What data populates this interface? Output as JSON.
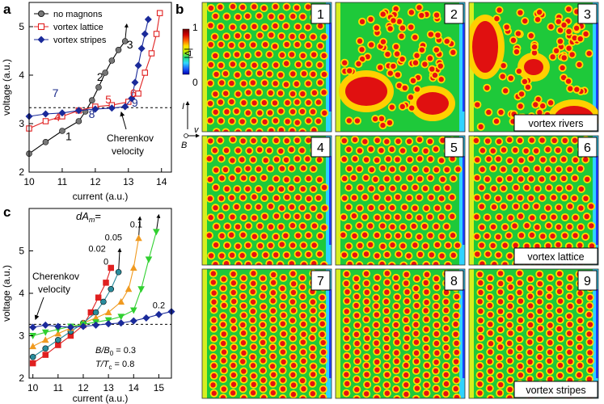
{
  "panel_letters": {
    "a": "a",
    "b": "b",
    "c": "c"
  },
  "colorbar": {
    "title": "|Δ|",
    "max_label": "1",
    "min_label": "0",
    "colors": [
      "#0000b0",
      "#1a60ff",
      "#30d8ff",
      "#20e080",
      "#c0f000",
      "#ffe000",
      "#ff6000",
      "#d00000",
      "#700000"
    ]
  },
  "axes_legend": {
    "I": "I",
    "v": "v",
    "B": "B"
  },
  "tiles": [
    {
      "number": "1",
      "pattern": "lattice",
      "caption": ""
    },
    {
      "number": "2",
      "pattern": "rivers",
      "caption": ""
    },
    {
      "number": "3",
      "pattern": "rivers",
      "caption": "vortex rivers"
    },
    {
      "number": "4",
      "pattern": "lattice",
      "caption": ""
    },
    {
      "number": "5",
      "pattern": "lattice",
      "caption": ""
    },
    {
      "number": "6",
      "pattern": "lattice",
      "caption": "vortex lattice"
    },
    {
      "number": "7",
      "pattern": "stripes",
      "caption": ""
    },
    {
      "number": "8",
      "pattern": "stripes",
      "caption": ""
    },
    {
      "number": "9",
      "pattern": "stripes",
      "caption": "vortex stripes"
    }
  ],
  "panel_a_annotations": {
    "point_labels": [
      {
        "text": "1",
        "x": 11.1,
        "y": 2.66,
        "color": "#000000"
      },
      {
        "text": "2",
        "x": 12.05,
        "y": 3.88,
        "color": "#000000"
      },
      {
        "text": "3",
        "x": 12.95,
        "y": 4.55,
        "color": "#000000"
      },
      {
        "text": "4",
        "x": 10.75,
        "y": 3.05,
        "color": "#e02020"
      },
      {
        "text": "5",
        "x": 12.3,
        "y": 3.42,
        "color": "#e02020"
      },
      {
        "text": "6",
        "x": 13.05,
        "y": 3.55,
        "color": "#e02020"
      },
      {
        "text": "7",
        "x": 10.7,
        "y": 3.55,
        "color": "#1a2a8a"
      },
      {
        "text": "8",
        "x": 11.8,
        "y": 3.12,
        "color": "#1a2a8a"
      },
      {
        "text": "9",
        "x": 13.1,
        "y": 3.35,
        "color": "#1a2a8a"
      }
    ],
    "cherenkov_line1": "Cherenkov",
    "cherenkov_line2": "velocity"
  },
  "panel_c_annotations": {
    "dam_title_main": "dA",
    "dam_title_sub": "m",
    "dam_title_eq": "=",
    "curve_labels": [
      {
        "text": "0",
        "x": 12.9,
        "y": 4.68
      },
      {
        "text": "0.02",
        "x": 12.55,
        "y": 4.98
      },
      {
        "text": "0.05",
        "x": 13.2,
        "y": 5.25
      },
      {
        "text": "0.1",
        "x": 14.1,
        "y": 5.55
      },
      {
        "text": "0.2",
        "x": 15.0,
        "y": 3.65
      }
    ],
    "cherenkov_line1": "Cherenkov",
    "cherenkov_line2": "velocity",
    "param_b": "B/B",
    "param_b_sub": "0",
    "param_b_val": " = 0.3",
    "param_t": "T/T",
    "param_t_sub": "c",
    "param_t_val": " = 0.8"
  },
  "chart_data": [
    {
      "type": "line",
      "panel": "a",
      "xlabel": "current (a.u.)",
      "ylabel": "voltage (a.u.)",
      "xlim": [
        10,
        14.3
      ],
      "ylim": [
        2,
        5.5
      ],
      "xticks": [
        10,
        11,
        12,
        13,
        14
      ],
      "yticks": [
        2,
        3,
        4,
        5
      ],
      "threshold": 3.33,
      "legend_position": "top-left",
      "series": [
        {
          "name": "no magnons",
          "color": "#000000",
          "marker": "circle",
          "x": [
            10,
            10.5,
            11,
            11.5,
            11.7,
            11.9,
            12.1,
            12.3,
            12.5,
            12.7,
            12.9
          ],
          "y": [
            2.38,
            2.62,
            2.85,
            3.05,
            3.25,
            3.48,
            3.75,
            4.05,
            4.3,
            4.52,
            4.7
          ],
          "arrow_end": [
            12.95,
            5.05
          ]
        },
        {
          "name": "vortex lattice",
          "color": "#e02020",
          "marker": "square",
          "x": [
            10,
            10.5,
            11,
            11.5,
            12,
            12.5,
            13,
            13.3,
            13.5,
            13.7,
            13.85,
            13.95
          ],
          "y": [
            2.9,
            3.05,
            3.15,
            3.27,
            3.35,
            3.38,
            3.45,
            3.62,
            4.05,
            4.45,
            4.85,
            5.28
          ]
        },
        {
          "name": "vortex stripes",
          "color": "#1a2a9a",
          "marker": "diamond",
          "x": [
            10,
            10.5,
            11,
            11.5,
            12,
            12.5,
            12.9,
            13.1,
            13.2,
            13.3,
            13.4,
            13.5,
            13.6
          ],
          "y": [
            3.15,
            3.2,
            3.22,
            3.27,
            3.3,
            3.32,
            3.35,
            3.52,
            3.85,
            4.2,
            4.55,
            4.85,
            5.15
          ]
        }
      ]
    },
    {
      "type": "line",
      "panel": "c",
      "xlabel": "current (a.u.)",
      "ylabel": "voltage (a.u.)",
      "xlim": [
        9.85,
        15.5
      ],
      "ylim": [
        2,
        6
      ],
      "xticks": [
        10,
        11,
        12,
        13,
        14,
        15
      ],
      "yticks": [
        2,
        3,
        4,
        5
      ],
      "threshold": 3.27,
      "series": [
        {
          "name": "0",
          "color": "#e02020",
          "marker": "square",
          "x": [
            10,
            10.5,
            11,
            11.5,
            12,
            12.3,
            12.6,
            12.9,
            13.1
          ],
          "y": [
            2.35,
            2.55,
            2.78,
            3.0,
            3.25,
            3.55,
            3.9,
            4.25,
            4.6
          ]
        },
        {
          "name": "0.02",
          "color": "#2a8c9c",
          "marker": "circle",
          "x": [
            10,
            10.5,
            11,
            11.5,
            12,
            12.5,
            12.8,
            13.1,
            13.4
          ],
          "y": [
            2.5,
            2.7,
            2.9,
            3.1,
            3.3,
            3.55,
            3.8,
            4.1,
            4.5
          ],
          "arrow_end": [
            13.45,
            5.05
          ]
        },
        {
          "name": "0.05",
          "color": "#f09a20",
          "marker": "triangle-up",
          "x": [
            10,
            10.5,
            11,
            11.5,
            12,
            12.5,
            13,
            13.5,
            13.8,
            14.0,
            14.2
          ],
          "y": [
            2.75,
            2.9,
            3.05,
            3.18,
            3.3,
            3.42,
            3.55,
            3.8,
            4.1,
            4.6,
            5.3
          ],
          "arrow_end": [
            14.25,
            5.8
          ]
        },
        {
          "name": "0.1",
          "color": "#30d030",
          "marker": "triangle-down",
          "x": [
            10,
            10.5,
            11,
            11.5,
            12,
            12.5,
            13,
            13.5,
            14,
            14.3,
            14.6,
            14.9
          ],
          "y": [
            3.0,
            3.08,
            3.15,
            3.22,
            3.27,
            3.32,
            3.37,
            3.45,
            3.6,
            4.1,
            4.8,
            5.45
          ],
          "arrow_end": [
            15.0,
            5.85
          ]
        },
        {
          "name": "0.2",
          "color": "#1a2a9a",
          "marker": "diamond",
          "x": [
            10,
            10.5,
            11,
            11.5,
            12,
            12.5,
            13,
            13.5,
            14,
            14.5,
            15,
            15.5
          ],
          "y": [
            3.2,
            3.25,
            3.22,
            3.2,
            3.22,
            3.25,
            3.28,
            3.3,
            3.35,
            3.42,
            3.5,
            3.57
          ]
        }
      ]
    }
  ]
}
